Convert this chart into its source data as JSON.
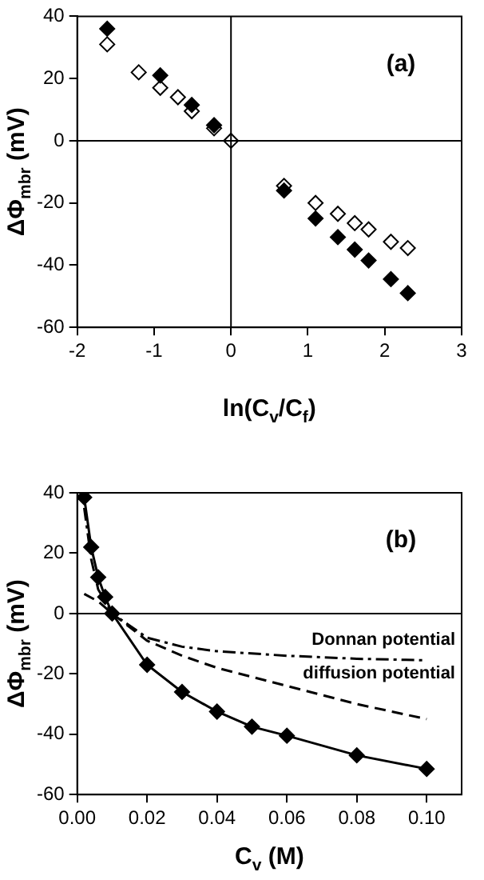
{
  "chart_data": [
    {
      "type": "scatter",
      "xlabel": "ln(C$_{v}$/C$_{f}$)",
      "ylabel": "ΔΦ$_{mbr}$ (mV)",
      "annotations": [
        "(a)"
      ],
      "xlim": [
        -2,
        3
      ],
      "xticks": [
        -2,
        -1,
        0,
        1,
        2,
        3
      ],
      "ylim": [
        -60,
        40
      ],
      "yticks": [
        -60,
        -40,
        -20,
        0,
        20,
        40
      ],
      "grid": false,
      "legend": false,
      "marker": "diamond",
      "ref_lines": [
        {
          "axis": "x",
          "value": 0
        },
        {
          "axis": "y",
          "value": 0
        }
      ],
      "series": [
        {
          "color": "#000000",
          "x": [
            -1.61,
            -0.92,
            -0.51,
            -0.22,
            0.69,
            1.1,
            1.39,
            1.61,
            1.79,
            2.08,
            2.3
          ],
          "values": [
            36,
            21,
            11.5,
            5,
            -16,
            -25,
            -31,
            -35,
            -38.5,
            -44.5,
            -49
          ]
        },
        {
          "color": "#ffffff",
          "x": [
            -1.61,
            -1.2,
            -0.92,
            -0.69,
            -0.51,
            -0.22,
            0,
            0.69,
            1.1,
            1.39,
            1.61,
            1.79,
            2.08,
            2.3
          ],
          "values": [
            31,
            22,
            17,
            14,
            9.5,
            4,
            0,
            -14.5,
            -20,
            -23.5,
            -26.5,
            -28.5,
            -32.5,
            -34.5
          ]
        }
      ]
    },
    {
      "type": "line",
      "xlabel": "C$_{v}$ (M)",
      "ylabel": "ΔΦ$_{mbr}$ (mV)",
      "annotations": [
        "(b)"
      ],
      "xlim": [
        0,
        0.11
      ],
      "xticks": [
        {
          "value": 0,
          "label": "0.00"
        },
        {
          "value": 0.02,
          "label": "0.02"
        },
        {
          "value": 0.04,
          "label": "0.04"
        },
        {
          "value": 0.06,
          "label": "0.06"
        },
        {
          "value": 0.08,
          "label": "0.08"
        },
        {
          "value": 0.1,
          "label": "0.10"
        }
      ],
      "ylim": [
        -60,
        40
      ],
      "yticks": [
        -60,
        -40,
        -20,
        0,
        20,
        40
      ],
      "grid": false,
      "legend": false,
      "ref_lines": [
        {
          "axis": "y",
          "value": 0
        }
      ],
      "series": [
        {
          "color": "#000000",
          "marker": "diamond",
          "line_style": "solid",
          "x": [
            0.002,
            0.004,
            0.006,
            0.008,
            0.01,
            0.02,
            0.03,
            0.04,
            0.05,
            0.06,
            0.08,
            0.1
          ],
          "values": [
            38.5,
            22,
            12,
            5.5,
            0,
            -17,
            -26,
            -32.5,
            -37.5,
            -40.5,
            -47,
            -51.5
          ]
        },
        {
          "name": "Donnan potential",
          "color": "#000000",
          "marker": "none",
          "line_style": "dashdot",
          "x": [
            0.002,
            0.004,
            0.006,
            0.01,
            0.02,
            0.03,
            0.04,
            0.06,
            0.08,
            0.1
          ],
          "values": [
            35,
            18,
            8,
            0,
            -8,
            -11,
            -12.5,
            -14,
            -15,
            -15.5
          ]
        },
        {
          "name": "diffusion potential",
          "color": "#000000",
          "marker": "none",
          "line_style": "dashed",
          "x": [
            0.002,
            0.006,
            0.01,
            0.02,
            0.03,
            0.04,
            0.06,
            0.08,
            0.1
          ],
          "values": [
            6.5,
            4,
            0,
            -9,
            -14,
            -18,
            -24,
            -30,
            -35
          ]
        }
      ]
    }
  ]
}
